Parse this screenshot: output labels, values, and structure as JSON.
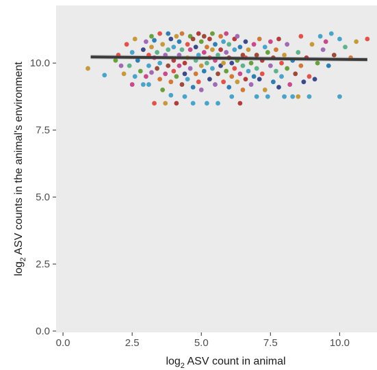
{
  "chart_data": {
    "type": "scatter",
    "title": "",
    "xlabel": {
      "prefix": "log",
      "subscript": "2",
      "text": " ASV count in animal"
    },
    "ylabel": {
      "prefix": "log",
      "subscript": "2",
      "text": " ASV counts in the animal's environment"
    },
    "xlim": [
      -0.25,
      11.35
    ],
    "ylim": [
      -0.05,
      12.15
    ],
    "x_ticks": [
      0.0,
      2.5,
      5.0,
      7.5,
      10.0
    ],
    "x_tick_labels": [
      "0.0",
      "2.5",
      "5.0",
      "7.5",
      "10.0"
    ],
    "y_ticks": [
      0.0,
      2.5,
      5.0,
      7.5,
      10.0
    ],
    "y_tick_labels": [
      "0.0",
      "2.5",
      "5.0",
      "7.5",
      "10.0"
    ],
    "grid": false,
    "legend": "none",
    "colors": {
      "panel_background": "#ebebeb",
      "trend_line": "#3a3a3a",
      "confidence_band": "#bdbdbd",
      "points": [
        "#e0534a",
        "#4aa3c8",
        "#c69a3c",
        "#6a9f3d",
        "#a06ab4",
        "#c94a8a",
        "#2f7fb3",
        "#9c4a3a",
        "#5fb28c",
        "#d07a3a",
        "#3d4a8a",
        "#b33d3d"
      ]
    },
    "series": [
      {
        "type": "regression-line",
        "x": [
          1.0,
          11.0
        ],
        "y": [
          10.23,
          10.13
        ],
        "band_halfwidth": [
          0.08,
          0.08
        ]
      },
      {
        "type": "points",
        "points": [
          [
            0.9,
            9.8,
            2
          ],
          [
            1.5,
            9.55,
            1
          ],
          [
            1.9,
            10.1,
            3
          ],
          [
            2.0,
            10.3,
            0
          ],
          [
            2.1,
            9.9,
            4
          ],
          [
            2.2,
            9.6,
            2
          ],
          [
            2.3,
            10.7,
            0
          ],
          [
            2.4,
            9.9,
            8
          ],
          [
            2.5,
            10.4,
            1
          ],
          [
            2.5,
            9.2,
            5
          ],
          [
            2.6,
            10.9,
            2
          ],
          [
            2.6,
            9.5,
            1
          ],
          [
            2.7,
            10.1,
            6
          ],
          [
            2.8,
            9.7,
            3
          ],
          [
            2.9,
            9.2,
            1
          ],
          [
            2.9,
            10.5,
            10
          ],
          [
            3.0,
            10.8,
            4
          ],
          [
            3.0,
            9.5,
            5
          ],
          [
            3.1,
            10.3,
            0
          ],
          [
            3.1,
            9.9,
            1
          ],
          [
            3.1,
            9.2,
            1
          ],
          [
            3.2,
            10.6,
            2
          ],
          [
            3.2,
            11.0,
            3
          ],
          [
            3.2,
            9.65,
            4
          ],
          [
            3.3,
            10.2,
            5
          ],
          [
            3.3,
            10.85,
            6
          ],
          [
            3.3,
            8.5,
            0
          ],
          [
            3.4,
            9.8,
            7
          ],
          [
            3.4,
            10.4,
            8
          ],
          [
            3.5,
            9.4,
            9
          ],
          [
            3.5,
            11.1,
            0
          ],
          [
            3.5,
            10.0,
            1
          ],
          [
            3.6,
            10.7,
            2
          ],
          [
            3.6,
            9.0,
            3
          ],
          [
            3.7,
            8.5,
            2
          ],
          [
            3.7,
            10.3,
            4
          ],
          [
            3.7,
            9.6,
            5
          ],
          [
            3.8,
            11.1,
            6
          ],
          [
            3.8,
            9.9,
            7
          ],
          [
            3.8,
            10.5,
            8
          ],
          [
            3.9,
            8.8,
            1
          ],
          [
            3.9,
            9.3,
            9
          ],
          [
            3.9,
            10.9,
            10
          ],
          [
            4.0,
            10.1,
            11
          ],
          [
            4.0,
            9.7,
            0
          ],
          [
            4.0,
            10.6,
            1
          ],
          [
            4.1,
            11.0,
            2
          ],
          [
            4.1,
            9.5,
            3
          ],
          [
            4.1,
            8.5,
            11
          ],
          [
            4.2,
            10.3,
            4
          ],
          [
            4.2,
            9.9,
            5
          ],
          [
            4.2,
            10.8,
            6
          ],
          [
            4.3,
            9.2,
            7
          ],
          [
            4.3,
            10.5,
            8
          ],
          [
            4.3,
            11.1,
            9
          ],
          [
            4.4,
            9.6,
            10
          ],
          [
            4.4,
            10.0,
            11
          ],
          [
            4.4,
            8.75,
            1
          ],
          [
            4.5,
            10.7,
            0
          ],
          [
            4.5,
            9.4,
            1
          ],
          [
            4.5,
            10.2,
            2
          ],
          [
            4.6,
            11.0,
            3
          ],
          [
            4.6,
            9.8,
            4
          ],
          [
            4.6,
            10.5,
            5
          ],
          [
            4.7,
            9.1,
            6
          ],
          [
            4.7,
            10.9,
            7
          ],
          [
            4.7,
            8.5,
            1
          ],
          [
            4.8,
            10.1,
            8
          ],
          [
            4.8,
            9.6,
            9
          ],
          [
            4.8,
            10.6,
            10
          ],
          [
            4.9,
            11.1,
            11
          ],
          [
            4.9,
            9.3,
            0
          ],
          [
            4.9,
            10.3,
            1
          ],
          [
            5.0,
            9.9,
            2
          ],
          [
            5.0,
            10.8,
            3
          ],
          [
            5.0,
            9.0,
            4
          ],
          [
            5.1,
            10.4,
            5
          ],
          [
            5.1,
            9.7,
            6
          ],
          [
            5.1,
            11.0,
            7
          ],
          [
            5.2,
            10.0,
            8
          ],
          [
            5.2,
            8.5,
            1
          ],
          [
            5.2,
            10.6,
            9
          ],
          [
            5.3,
            9.4,
            10
          ],
          [
            5.3,
            10.9,
            11
          ],
          [
            5.3,
            10.2,
            0
          ],
          [
            5.4,
            9.8,
            1
          ],
          [
            5.4,
            10.5,
            2
          ],
          [
            5.4,
            11.1,
            3
          ],
          [
            5.5,
            9.2,
            4
          ],
          [
            5.5,
            10.1,
            5
          ],
          [
            5.5,
            10.7,
            6
          ],
          [
            5.6,
            9.6,
            7
          ],
          [
            5.6,
            10.3,
            8
          ],
          [
            5.6,
            8.5,
            1
          ],
          [
            5.7,
            11.0,
            9
          ],
          [
            5.7,
            9.9,
            10
          ],
          [
            5.7,
            10.5,
            11
          ],
          [
            5.8,
            9.3,
            0
          ],
          [
            5.8,
            10.8,
            1
          ],
          [
            5.8,
            10.0,
            2
          ],
          [
            5.9,
            9.7,
            3
          ],
          [
            5.9,
            10.4,
            4
          ],
          [
            5.9,
            11.1,
            5
          ],
          [
            6.0,
            9.1,
            6
          ],
          [
            6.0,
            10.2,
            7
          ],
          [
            6.0,
            10.7,
            8
          ],
          [
            6.1,
            9.5,
            9
          ],
          [
            6.1,
            10.0,
            10
          ],
          [
            6.1,
            8.75,
            1
          ],
          [
            6.2,
            10.9,
            11
          ],
          [
            6.2,
            9.8,
            0
          ],
          [
            6.2,
            10.5,
            1
          ],
          [
            6.3,
            9.3,
            2
          ],
          [
            6.3,
            10.1,
            3
          ],
          [
            6.3,
            11.0,
            4
          ],
          [
            6.4,
            9.6,
            5
          ],
          [
            6.4,
            10.6,
            6
          ],
          [
            6.4,
            8.5,
            11
          ],
          [
            6.5,
            10.3,
            7
          ],
          [
            6.5,
            9.9,
            8
          ],
          [
            6.5,
            9.0,
            9
          ],
          [
            6.6,
            10.8,
            10
          ],
          [
            6.6,
            9.4,
            11
          ],
          [
            6.6,
            10.2,
            0
          ],
          [
            6.7,
            9.7,
            1
          ],
          [
            6.7,
            10.5,
            2
          ],
          [
            6.8,
            10.0,
            3
          ],
          [
            6.8,
            9.2,
            4
          ],
          [
            6.9,
            10.7,
            5
          ],
          [
            6.9,
            9.5,
            6
          ],
          [
            7.0,
            10.3,
            7
          ],
          [
            7.0,
            9.8,
            8
          ],
          [
            7.0,
            8.75,
            1
          ],
          [
            7.1,
            10.9,
            9
          ],
          [
            7.1,
            9.4,
            10
          ],
          [
            7.2,
            10.1,
            11
          ],
          [
            7.2,
            9.6,
            0
          ],
          [
            7.3,
            10.6,
            1
          ],
          [
            7.3,
            9.0,
            2
          ],
          [
            7.4,
            10.4,
            3
          ],
          [
            7.4,
            8.75,
            1
          ],
          [
            7.5,
            9.9,
            4
          ],
          [
            7.5,
            10.8,
            5
          ],
          [
            7.6,
            9.3,
            6
          ],
          [
            7.6,
            10.2,
            7
          ],
          [
            7.7,
            9.7,
            8
          ],
          [
            7.7,
            10.5,
            9
          ],
          [
            7.8,
            9.1,
            10
          ],
          [
            7.8,
            10.9,
            11
          ],
          [
            7.9,
            10.0,
            0
          ],
          [
            7.9,
            9.5,
            1
          ],
          [
            8.0,
            10.3,
            2
          ],
          [
            8.0,
            8.75,
            1
          ],
          [
            8.1,
            9.8,
            3
          ],
          [
            8.1,
            10.7,
            4
          ],
          [
            8.2,
            9.2,
            5
          ],
          [
            8.3,
            10.1,
            6
          ],
          [
            8.3,
            8.75,
            1
          ],
          [
            8.4,
            9.6,
            7
          ],
          [
            8.5,
            10.4,
            8
          ],
          [
            8.5,
            8.75,
            2
          ],
          [
            8.6,
            9.9,
            9
          ],
          [
            8.6,
            11.0,
            0
          ],
          [
            8.7,
            9.3,
            10
          ],
          [
            8.8,
            10.2,
            11
          ],
          [
            8.9,
            8.75,
            1
          ],
          [
            8.9,
            9.5,
            0
          ],
          [
            9.0,
            10.7,
            2
          ],
          [
            9.1,
            9.4,
            10
          ],
          [
            9.2,
            10.0,
            3
          ],
          [
            9.3,
            11.0,
            1
          ],
          [
            9.4,
            10.5,
            4
          ],
          [
            9.5,
            10.8,
            5
          ],
          [
            9.6,
            9.9,
            6
          ],
          [
            9.7,
            11.1,
            1
          ],
          [
            9.8,
            10.3,
            7
          ],
          [
            10.0,
            10.9,
            1
          ],
          [
            10.0,
            8.75,
            1
          ],
          [
            10.2,
            10.6,
            8
          ],
          [
            10.4,
            10.2,
            9
          ],
          [
            10.6,
            10.8,
            2
          ],
          [
            11.0,
            10.9,
            0
          ]
        ]
      }
    ]
  }
}
